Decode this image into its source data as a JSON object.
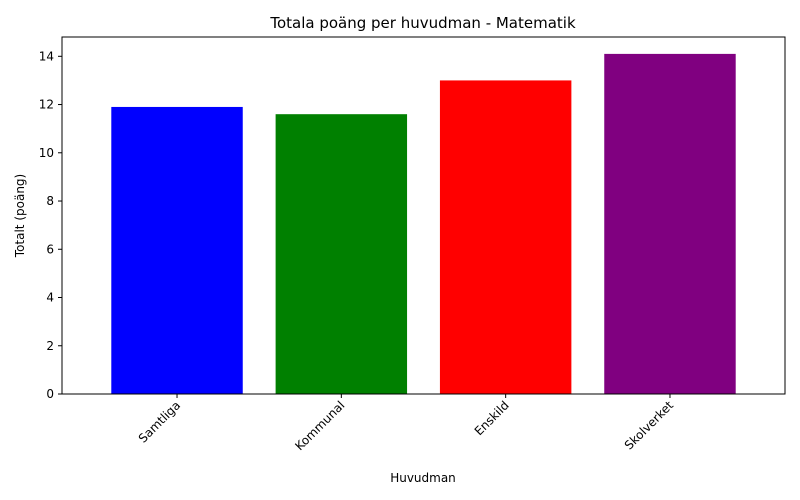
{
  "chart_data": {
    "type": "bar",
    "title": "Totala poäng per huvudman - Matematik",
    "xlabel": "Huvudman",
    "ylabel": "Totalt (poäng)",
    "categories": [
      "Samtliga",
      "Kommunal",
      "Enskild",
      "Skolverket"
    ],
    "values": [
      11.9,
      11.6,
      13.0,
      14.1
    ],
    "colors": [
      "#0000ff",
      "#008000",
      "#ff0000",
      "#800080"
    ],
    "ylim": [
      0,
      14.8
    ],
    "yticks": [
      0,
      2,
      4,
      6,
      8,
      10,
      12,
      14
    ],
    "grid": false,
    "legend": "none"
  }
}
